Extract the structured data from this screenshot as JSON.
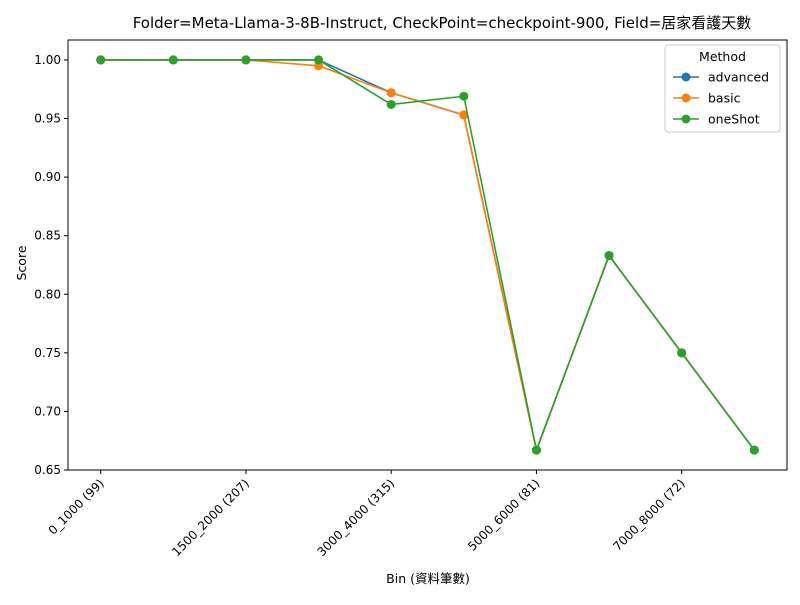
{
  "chart_data": {
    "type": "line",
    "title": "Folder=Meta-Llama-3-8B-Instruct, CheckPoint=checkpoint-900, Field=居家看護天數",
    "xlabel": "Bin (資料筆數)",
    "ylabel": "Score",
    "x_positions": [
      0,
      1,
      2,
      3,
      4,
      5,
      6,
      7,
      8,
      9
    ],
    "xtick_positions": [
      0,
      2,
      4,
      6,
      8
    ],
    "xtick_labels": [
      "0_1000 (99)",
      "1500_2000 (207)",
      "3000_4000 (315)",
      "5000_6000 (81)",
      "7000_8000 (72)"
    ],
    "xlim": [
      -0.45,
      9.45
    ],
    "ylim": [
      0.65,
      1.017
    ],
    "yticks": [
      0.65,
      0.7,
      0.75,
      0.8,
      0.85,
      0.9,
      0.95,
      1.0
    ],
    "ytick_labels": [
      "0.65",
      "0.70",
      "0.75",
      "0.80",
      "0.85",
      "0.90",
      "0.95",
      "1.00"
    ],
    "grid": false,
    "legend": {
      "title": "Method",
      "placement": "top-right"
    },
    "series": [
      {
        "name": "advanced",
        "color": "#1f77b4",
        "values": [
          1.0,
          1.0,
          1.0,
          1.0,
          0.972,
          0.953,
          0.667,
          0.833,
          0.75,
          0.667
        ]
      },
      {
        "name": "basic",
        "color": "#ff7f0e",
        "values": [
          1.0,
          1.0,
          1.0,
          0.995,
          0.972,
          0.953,
          0.667,
          0.833,
          0.75,
          0.667
        ]
      },
      {
        "name": "oneShot",
        "color": "#2ca02c",
        "values": [
          1.0,
          1.0,
          1.0,
          1.0,
          0.962,
          0.969,
          0.667,
          0.833,
          0.75,
          0.667
        ]
      }
    ]
  }
}
